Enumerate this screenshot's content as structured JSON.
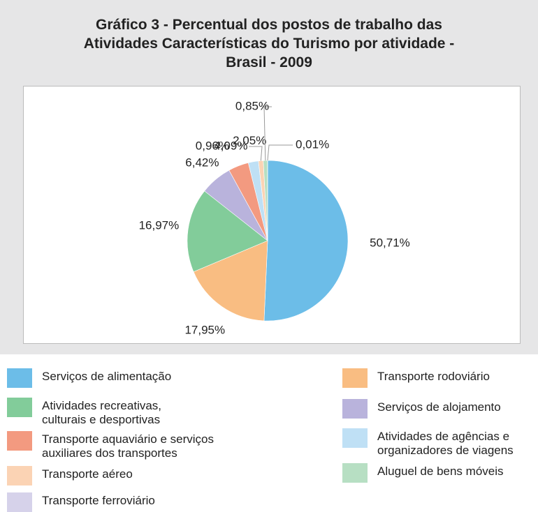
{
  "chart_data": {
    "type": "pie",
    "title": "Gráfico 3 - Percentual dos postos de trabalho das\nAtividades Características do Turismo por atividade -\nBrasil - 2009",
    "categories": [
      "Serviços de alimentação",
      "Transporte rodoviário",
      "Atividades recreativas,\nculturais e desportivas",
      "Serviços de alojamento",
      "Transporte aquaviário e serviços\nauxiliares dos transportes",
      "Atividades de agências e\norganizadores de viagens",
      "Transporte aéreo",
      "Aluguel de bens móveis",
      "Transporte ferroviário"
    ],
    "values": [
      50.71,
      17.95,
      16.97,
      6.42,
      4.09,
      2.05,
      0.96,
      0.85,
      0.01
    ],
    "value_labels": [
      "50,71%",
      "17,95%",
      "16,97%",
      "6,42%",
      "4,09%",
      "2,05%",
      "0,96%",
      "0,85%",
      "0,01%"
    ],
    "colors": [
      "#6cbde8",
      "#f9bd82",
      "#82cc9a",
      "#b9b3dc",
      "#f39a80",
      "#bfe0f5",
      "#fbd3b4",
      "#b7dfc3",
      "#d6d2ea"
    ]
  }
}
